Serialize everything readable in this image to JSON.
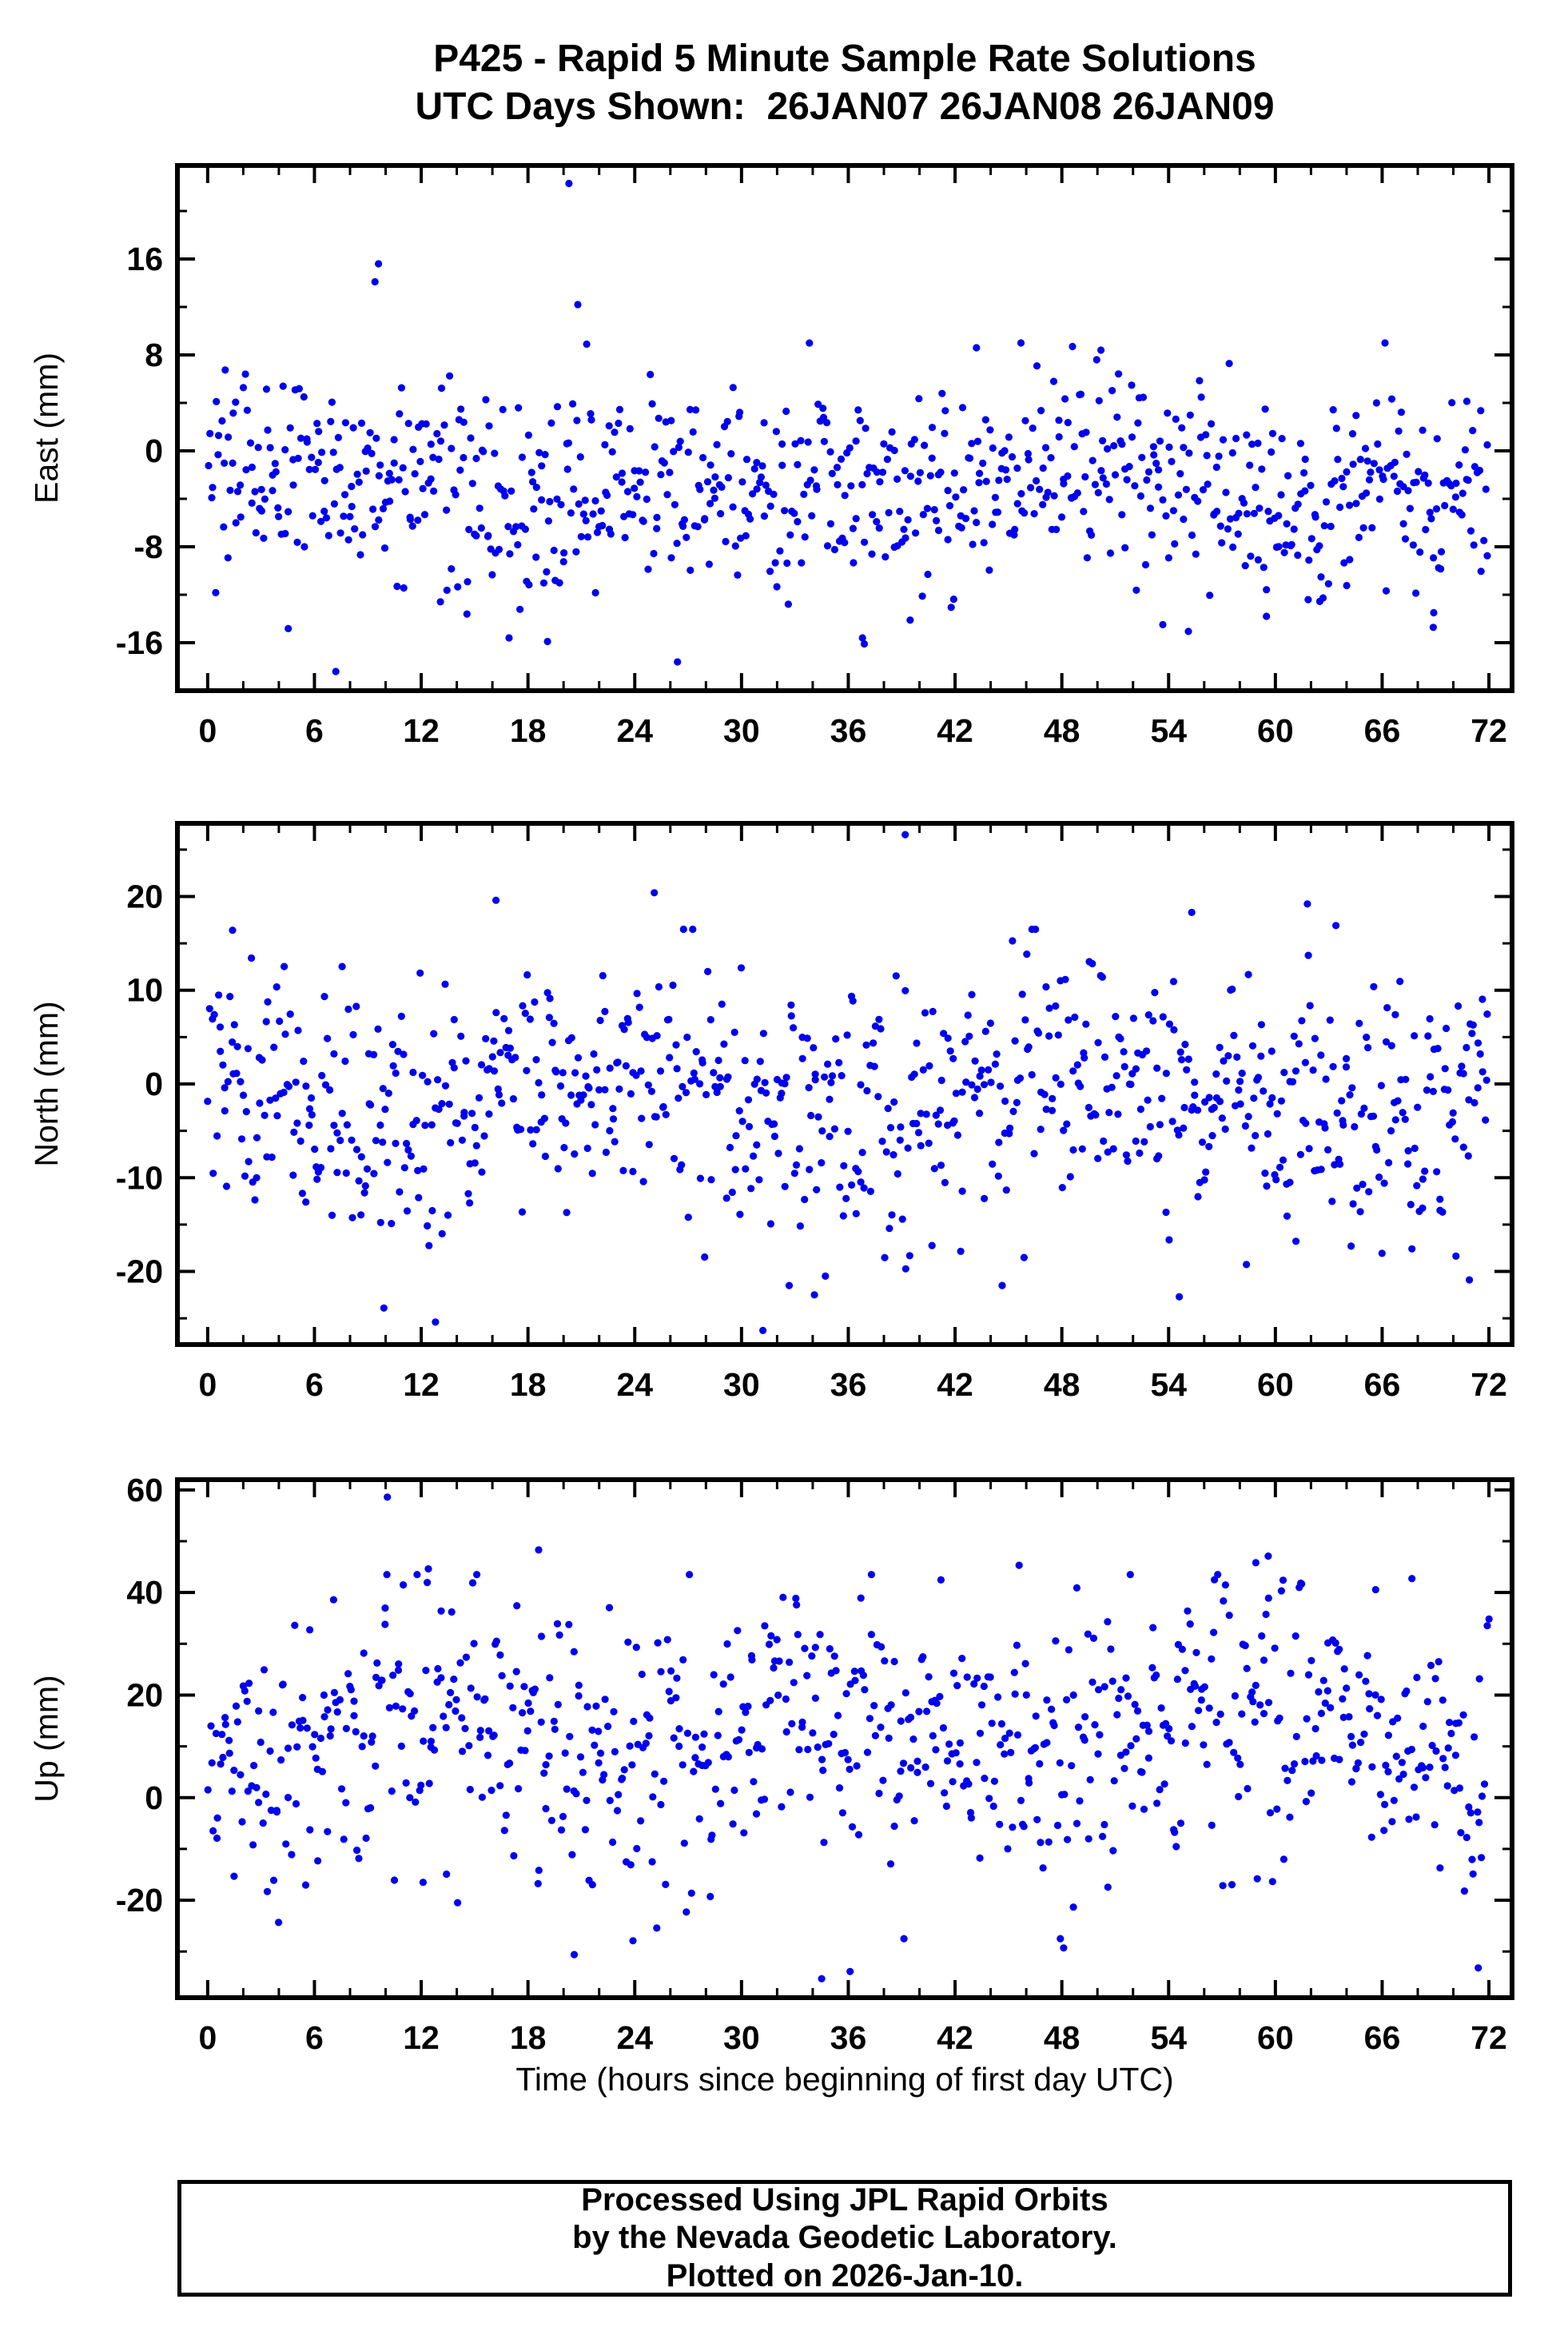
{
  "title": "P425 - Rapid 5 Minute Sample Rate Solutions",
  "subtitle": "UTC Days Shown:  26JAN07 26JAN08 26JAN09",
  "xlabel": "Time (hours since beginning of first day UTC)",
  "footer": {
    "lines": [
      "Processed Using JPL Rapid Orbits",
      "by the Nevada Geodetic Laboratory.",
      "Plotted on 2026-Jan-10."
    ]
  },
  "style": {
    "point_color": "#0000ee",
    "frame_color": "#000000",
    "background": "#ffffff"
  },
  "chart_data": [
    {
      "type": "scatter",
      "ylabel": "East (mm)",
      "xlim": [
        -1.7,
        73.3
      ],
      "ylim": [
        -20.0,
        23.8
      ],
      "xticks": [
        0,
        6,
        12,
        18,
        24,
        30,
        36,
        42,
        48,
        54,
        60,
        66,
        72
      ],
      "yticks": [
        -16,
        -8,
        0,
        8,
        16
      ],
      "x_minor_step": 2,
      "y_minor_step": 4,
      "cloud": {
        "n": 810,
        "seed": 20107,
        "mean": -3.0,
        "std": 3.9,
        "clip": [
          -15.6,
          9.0
        ],
        "wide_frac": 0.07,
        "wide_mult": 1.7,
        "wobble_amp": 1.3,
        "wobble_period": 24,
        "wobble_phase": 0.8
      },
      "outliers": [
        [
          20.3,
          22.3
        ],
        [
          9.6,
          15.6
        ],
        [
          9.4,
          14.1
        ],
        [
          20.8,
          12.2
        ],
        [
          21.3,
          8.9
        ],
        [
          43.2,
          8.6
        ],
        [
          48.6,
          8.7
        ],
        [
          50.2,
          8.4
        ],
        [
          7.2,
          -18.4
        ],
        [
          26.4,
          -17.6
        ],
        [
          19.1,
          -15.9
        ],
        [
          36.9,
          -16.1
        ],
        [
          59.5,
          -13.8
        ],
        [
          68.9,
          -13.5
        ]
      ]
    },
    {
      "type": "scatter",
      "ylabel": "North (mm)",
      "xlim": [
        -1.7,
        73.3
      ],
      "ylim": [
        -27.8,
        27.8
      ],
      "xticks": [
        0,
        6,
        12,
        18,
        24,
        30,
        36,
        42,
        48,
        54,
        60,
        66,
        72
      ],
      "yticks": [
        -20,
        -10,
        0,
        10,
        20
      ],
      "x_minor_step": 2,
      "y_minor_step": 5,
      "cloud": {
        "n": 810,
        "seed": 30219,
        "mean": -1.6,
        "std": 6.4,
        "clip": [
          -21.5,
          16.5
        ],
        "wide_frac": 0.07,
        "wide_mult": 1.5,
        "wobble_amp": 2.2,
        "wobble_period": 26,
        "wobble_phase": 2.2
      },
      "outliers": [
        [
          39.2,
          26.6
        ],
        [
          25.1,
          20.4
        ],
        [
          16.2,
          19.6
        ],
        [
          61.8,
          19.2
        ],
        [
          55.3,
          18.3
        ],
        [
          63.4,
          16.9
        ],
        [
          1.4,
          16.4
        ],
        [
          12.8,
          -25.4
        ],
        [
          31.2,
          -26.3
        ],
        [
          9.9,
          -23.9
        ],
        [
          34.1,
          -22.5
        ],
        [
          54.6,
          -22.7
        ],
        [
          70.9,
          -20.9
        ]
      ]
    },
    {
      "type": "scatter",
      "ylabel": "Up (mm)",
      "xlim": [
        -1.7,
        73.3
      ],
      "ylim": [
        -39.0,
        62.0
      ],
      "xticks": [
        0,
        6,
        12,
        18,
        24,
        30,
        36,
        42,
        48,
        54,
        60,
        66,
        72
      ],
      "yticks": [
        -20,
        0,
        20,
        40,
        60
      ],
      "x_minor_step": 2,
      "y_minor_step": 10,
      "cloud": {
        "n": 780,
        "seed": 40925,
        "mean": 12.0,
        "std": 12.5,
        "clip": [
          -27.5,
          43.5
        ],
        "wide_frac": 0.08,
        "wide_mult": 1.5,
        "wobble_amp": 4.5,
        "wobble_period": 23,
        "wobble_phase": 4.4
      },
      "outliers": [
        [
          10.1,
          58.6
        ],
        [
          18.6,
          48.3
        ],
        [
          59.6,
          47.1
        ],
        [
          58.9,
          45.8
        ],
        [
          45.6,
          45.3
        ],
        [
          12.4,
          44.6
        ],
        [
          34.5,
          -35.3
        ],
        [
          36.1,
          -33.9
        ],
        [
          71.4,
          -33.2
        ],
        [
          20.6,
          -30.6
        ],
        [
          48.1,
          -29.3
        ],
        [
          23.9,
          -27.9
        ]
      ]
    }
  ]
}
